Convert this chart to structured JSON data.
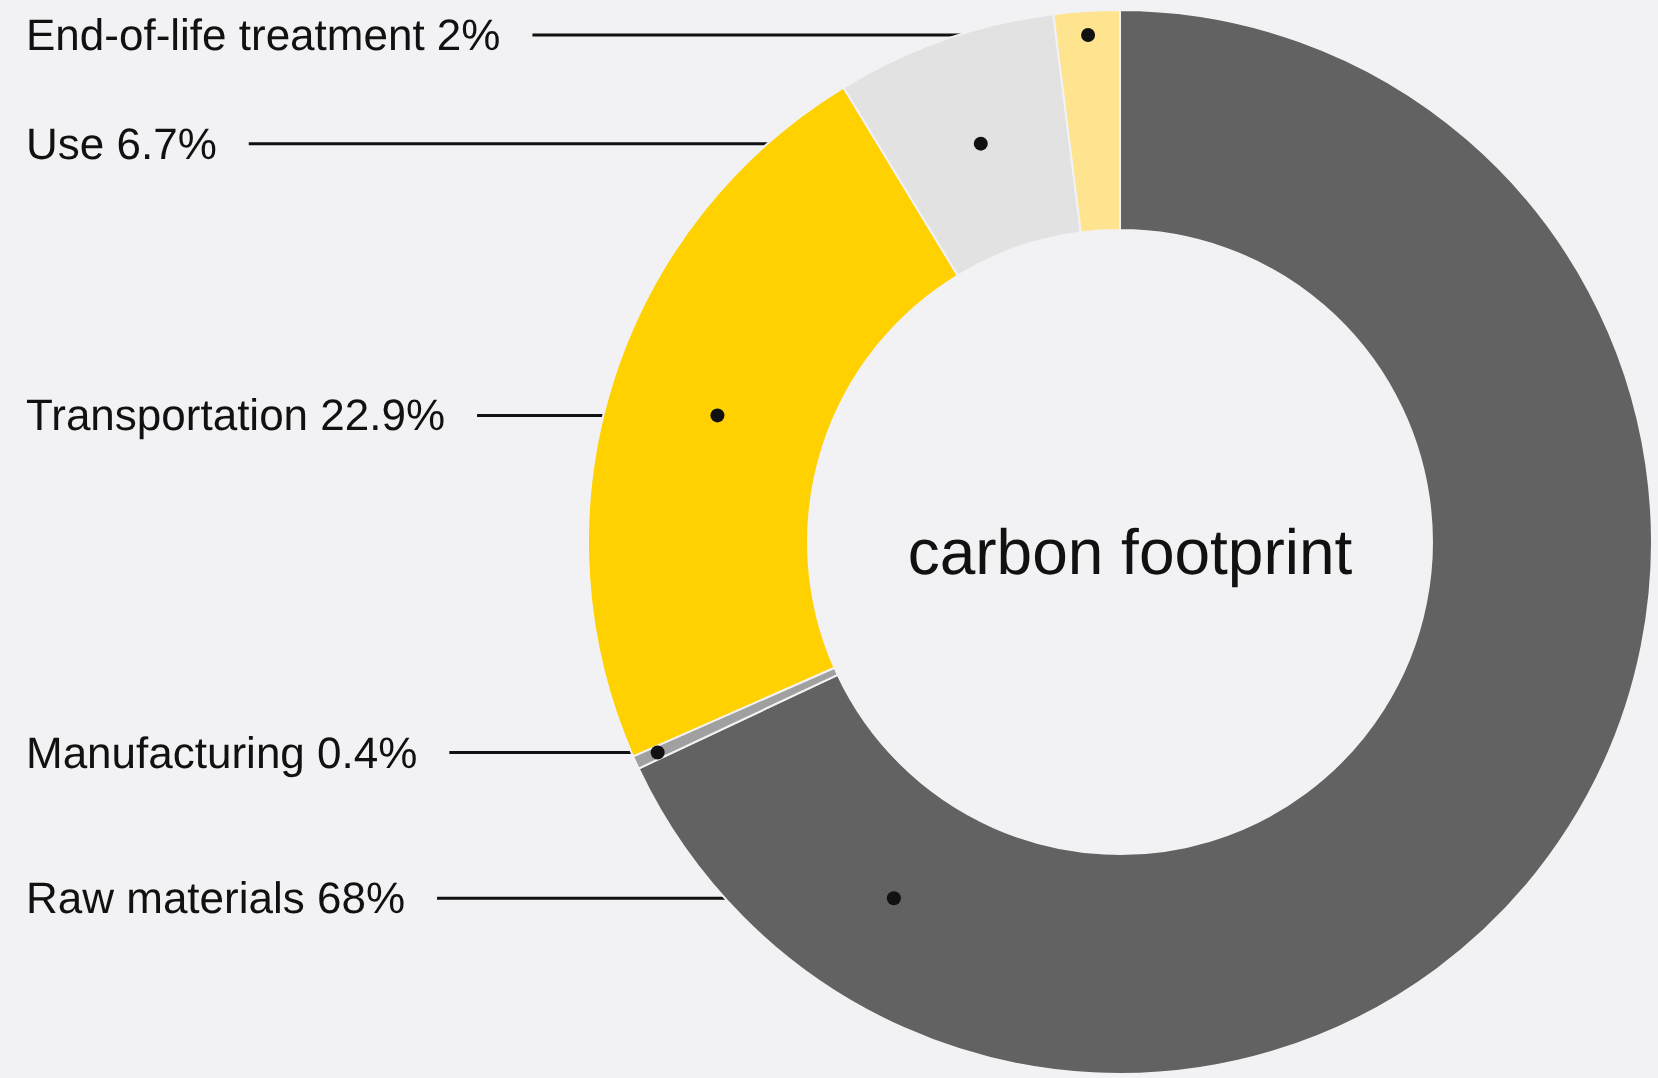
{
  "chart_data": {
    "type": "donut",
    "title": "carbon footprint",
    "categories": [
      "Raw materials",
      "Manufacturing",
      "Transportation",
      "Use",
      "End-of-life treatment"
    ],
    "values": [
      68,
      0.4,
      22.9,
      6.7,
      2
    ],
    "colors": [
      "#626262",
      "#a0a0a0",
      "#ffd100",
      "#e2e2e2",
      "#ffe48f"
    ],
    "value_labels": [
      "68%",
      "0.4%",
      "22.9%",
      "6.7%",
      "2%"
    ]
  }
}
